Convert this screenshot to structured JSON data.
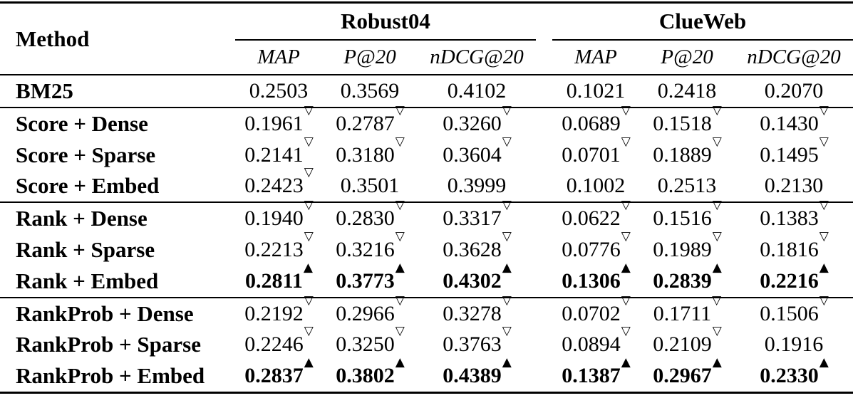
{
  "colors": {
    "background": "#ffffff",
    "text": "#000000",
    "rule": "#000000"
  },
  "table": {
    "method_header": "Method",
    "col_groups": [
      {
        "label": "Robust04",
        "metrics": [
          "MAP",
          "P@20",
          "nDCG@20"
        ]
      },
      {
        "label": "ClueWeb",
        "metrics": [
          "MAP",
          "P@20",
          "nDCG@20"
        ]
      }
    ],
    "markers": {
      "down": "▽",
      "up": "▲"
    },
    "sections": [
      {
        "name": "baseline",
        "rows": [
          {
            "method": "BM25",
            "bold": false,
            "values": [
              {
                "v": "0.2503",
                "m": ""
              },
              {
                "v": "0.3569",
                "m": ""
              },
              {
                "v": "0.4102",
                "m": ""
              },
              {
                "v": "0.1021",
                "m": ""
              },
              {
                "v": "0.2418",
                "m": ""
              },
              {
                "v": "0.2070",
                "m": ""
              }
            ]
          }
        ]
      },
      {
        "name": "score",
        "rows": [
          {
            "method": "Score + Dense",
            "bold": false,
            "values": [
              {
                "v": "0.1961",
                "m": "down"
              },
              {
                "v": "0.2787",
                "m": "down"
              },
              {
                "v": "0.3260",
                "m": "down"
              },
              {
                "v": "0.0689",
                "m": "down"
              },
              {
                "v": "0.1518",
                "m": "down"
              },
              {
                "v": "0.1430",
                "m": "down"
              }
            ]
          },
          {
            "method": "Score + Sparse",
            "bold": false,
            "values": [
              {
                "v": "0.2141",
                "m": "down"
              },
              {
                "v": "0.3180",
                "m": "down"
              },
              {
                "v": "0.3604",
                "m": "down"
              },
              {
                "v": "0.0701",
                "m": "down"
              },
              {
                "v": "0.1889",
                "m": "down"
              },
              {
                "v": "0.1495",
                "m": "down"
              }
            ]
          },
          {
            "method": "Score + Embed",
            "bold": false,
            "values": [
              {
                "v": "0.2423",
                "m": "down"
              },
              {
                "v": "0.3501",
                "m": ""
              },
              {
                "v": "0.3999",
                "m": ""
              },
              {
                "v": "0.1002",
                "m": ""
              },
              {
                "v": "0.2513",
                "m": ""
              },
              {
                "v": "0.2130",
                "m": ""
              }
            ]
          }
        ]
      },
      {
        "name": "rank",
        "rows": [
          {
            "method": "Rank + Dense",
            "bold": false,
            "values": [
              {
                "v": "0.1940",
                "m": "down"
              },
              {
                "v": "0.2830",
                "m": "down"
              },
              {
                "v": "0.3317",
                "m": "down"
              },
              {
                "v": "0.0622",
                "m": "down"
              },
              {
                "v": "0.1516",
                "m": "down"
              },
              {
                "v": "0.1383",
                "m": "down"
              }
            ]
          },
          {
            "method": "Rank + Sparse",
            "bold": false,
            "values": [
              {
                "v": "0.2213",
                "m": "down"
              },
              {
                "v": "0.3216",
                "m": "down"
              },
              {
                "v": "0.3628",
                "m": "down"
              },
              {
                "v": "0.0776",
                "m": "down"
              },
              {
                "v": "0.1989",
                "m": "down"
              },
              {
                "v": "0.1816",
                "m": "down"
              }
            ]
          },
          {
            "method": "Rank + Embed",
            "bold": true,
            "values": [
              {
                "v": "0.2811",
                "m": "up"
              },
              {
                "v": "0.3773",
                "m": "up"
              },
              {
                "v": "0.4302",
                "m": "up"
              },
              {
                "v": "0.1306",
                "m": "up"
              },
              {
                "v": "0.2839",
                "m": "up"
              },
              {
                "v": "0.2216",
                "m": "up"
              }
            ]
          }
        ]
      },
      {
        "name": "rankprob",
        "rows": [
          {
            "method": "RankProb + Dense",
            "bold": false,
            "values": [
              {
                "v": "0.2192",
                "m": "down"
              },
              {
                "v": "0.2966",
                "m": "down"
              },
              {
                "v": "0.3278",
                "m": "down"
              },
              {
                "v": "0.0702",
                "m": "down"
              },
              {
                "v": "0.1711",
                "m": "down"
              },
              {
                "v": "0.1506",
                "m": "down"
              }
            ]
          },
          {
            "method": "RankProb + Sparse",
            "bold": false,
            "values": [
              {
                "v": "0.2246",
                "m": "down"
              },
              {
                "v": "0.3250",
                "m": "down"
              },
              {
                "v": "0.3763",
                "m": "down"
              },
              {
                "v": "0.0894",
                "m": "down"
              },
              {
                "v": "0.2109",
                "m": "down"
              },
              {
                "v": "0.1916",
                "m": ""
              }
            ]
          },
          {
            "method": "RankProb + Embed",
            "bold": true,
            "values": [
              {
                "v": "0.2837",
                "m": "up"
              },
              {
                "v": "0.3802",
                "m": "up"
              },
              {
                "v": "0.4389",
                "m": "up"
              },
              {
                "v": "0.1387",
                "m": "up"
              },
              {
                "v": "0.2967",
                "m": "up"
              },
              {
                "v": "0.2330",
                "m": "up"
              }
            ]
          }
        ]
      }
    ]
  }
}
